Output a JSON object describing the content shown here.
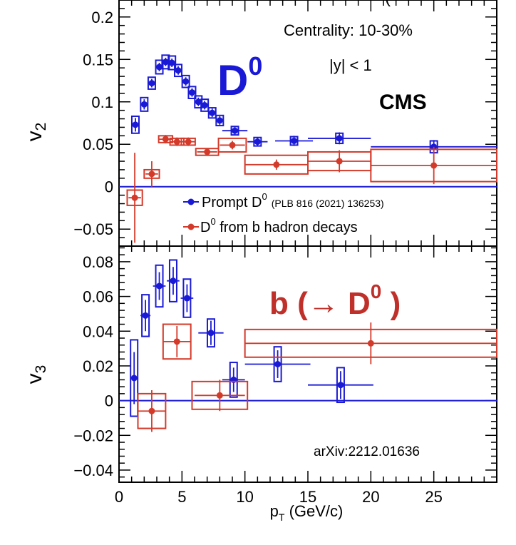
{
  "figure": {
    "header_fragment": "(",
    "xlabel_main": "p",
    "xlabel_sub": "T",
    "xlabel_unit": " (GeV/c)"
  },
  "chart_data": [
    {
      "type": "scatter",
      "panel": "top",
      "ylabel_main": "v",
      "ylabel_sub": "2",
      "xlim": [
        0,
        30
      ],
      "ylim": [
        -0.07,
        0.22
      ],
      "xticks": [
        "0",
        "5",
        "10",
        "15",
        "20",
        "25"
      ],
      "yticks": [
        {
          "value": 0.2,
          "label": "0.2"
        },
        {
          "value": 0.15,
          "label": "0.15"
        },
        {
          "value": 0.1,
          "label": "0.1"
        },
        {
          "value": 0.05,
          "label": "0.05"
        },
        {
          "value": 0,
          "label": "0"
        },
        {
          "value": -0.05,
          "label": "−0.05"
        }
      ],
      "annotations": {
        "centrality": "Centrality: 10-30%",
        "rapidity": "|y| < 1",
        "experiment": "CMS",
        "species": "D",
        "species_sup": "0"
      },
      "legend": {
        "prompt_text": "Prompt D",
        "prompt_sup": "0",
        "prompt_ref": "(PLB 816 (2021) 136253)",
        "b_text": "D",
        "b_sup": "0",
        "b_rest": " from b hadron decays"
      },
      "series": [
        {
          "name": "Prompt D0",
          "color": "#1a1ad6",
          "points": [
            {
              "x": 1.3,
              "y": 0.073,
              "xerr": 0.3,
              "stat": 0.008,
              "syst": 0.01
            },
            {
              "x": 2.0,
              "y": 0.097,
              "xerr": 0.25,
              "stat": 0.006,
              "syst": 0.008
            },
            {
              "x": 2.6,
              "y": 0.122,
              "xerr": 0.25,
              "stat": 0.005,
              "syst": 0.007
            },
            {
              "x": 3.2,
              "y": 0.141,
              "xerr": 0.25,
              "stat": 0.005,
              "syst": 0.008
            },
            {
              "x": 3.7,
              "y": 0.147,
              "xerr": 0.25,
              "stat": 0.005,
              "syst": 0.008
            },
            {
              "x": 4.2,
              "y": 0.146,
              "xerr": 0.25,
              "stat": 0.005,
              "syst": 0.008
            },
            {
              "x": 4.7,
              "y": 0.137,
              "xerr": 0.25,
              "stat": 0.005,
              "syst": 0.007
            },
            {
              "x": 5.3,
              "y": 0.124,
              "xerr": 0.25,
              "stat": 0.005,
              "syst": 0.007
            },
            {
              "x": 5.8,
              "y": 0.111,
              "xerr": 0.25,
              "stat": 0.005,
              "syst": 0.007
            },
            {
              "x": 6.3,
              "y": 0.1,
              "xerr": 0.25,
              "stat": 0.005,
              "syst": 0.007
            },
            {
              "x": 6.8,
              "y": 0.096,
              "xerr": 0.25,
              "stat": 0.005,
              "syst": 0.007
            },
            {
              "x": 7.4,
              "y": 0.087,
              "xerr": 0.3,
              "stat": 0.005,
              "syst": 0.006
            },
            {
              "x": 8.0,
              "y": 0.078,
              "xerr": 0.3,
              "stat": 0.005,
              "syst": 0.006
            },
            {
              "x": 9.2,
              "y": 0.066,
              "xerr": 1.0,
              "stat": 0.005,
              "syst": 0.005
            },
            {
              "x": 11.0,
              "y": 0.053,
              "xerr": 0.8,
              "stat": 0.005,
              "syst": 0.005
            },
            {
              "x": 13.9,
              "y": 0.054,
              "xerr": 1.5,
              "stat": 0.006,
              "syst": 0.005
            },
            {
              "x": 17.5,
              "y": 0.057,
              "xerr": 2.5,
              "stat": 0.007,
              "syst": 0.006
            },
            {
              "x": 25.0,
              "y": 0.047,
              "xerr": 5.0,
              "stat": 0.008,
              "syst": 0.007
            }
          ]
        },
        {
          "name": "D0 from b hadron decays",
          "color": "#d43a2a",
          "points": [
            {
              "x": 1.25,
              "y": -0.013,
              "xerr": 0.5,
              "xsyst": 0.6,
              "stat": 0.053,
              "syst": 0.009
            },
            {
              "x": 2.6,
              "y": 0.015,
              "xerr": 0.5,
              "xsyst": 0.6,
              "stat": 0.015,
              "syst": 0.005
            },
            {
              "x": 3.7,
              "y": 0.056,
              "xerr": 0.5,
              "xsyst": 0.55,
              "stat": 0.005,
              "syst": 0.004
            },
            {
              "x": 4.6,
              "y": 0.053,
              "xerr": 0.5,
              "xsyst": 0.55,
              "stat": 0.005,
              "syst": 0.004
            },
            {
              "x": 5.5,
              "y": 0.053,
              "xerr": 0.5,
              "xsyst": 0.55,
              "stat": 0.005,
              "syst": 0.004
            },
            {
              "x": 7.0,
              "y": 0.041,
              "xerr": 0.8,
              "xsyst": 0.9,
              "stat": 0.004,
              "syst": 0.004
            },
            {
              "x": 9.0,
              "y": 0.049,
              "xerr": 1.0,
              "xsyst": 1.1,
              "stat": 0.005,
              "syst": 0.008
            },
            {
              "x": 12.5,
              "y": 0.026,
              "xerr": 2.5,
              "xsyst": 2.5,
              "stat": 0.006,
              "syst": 0.011
            },
            {
              "x": 17.5,
              "y": 0.03,
              "xerr": 2.5,
              "xsyst": 2.5,
              "stat": 0.013,
              "syst": 0.011
            },
            {
              "x": 25.0,
              "y": 0.025,
              "xerr": 5.0,
              "xsyst": 5.0,
              "stat": 0.022,
              "syst": 0.019
            }
          ]
        }
      ]
    },
    {
      "type": "scatter",
      "panel": "bottom",
      "ylabel_main": "v",
      "ylabel_sub": "3",
      "xlim": [
        0,
        30
      ],
      "ylim": [
        -0.047,
        0.089
      ],
      "xticks": [
        "0",
        "5",
        "10",
        "15",
        "20",
        "25"
      ],
      "yticks": [
        {
          "value": 0.08,
          "label": "0.08"
        },
        {
          "value": 0.06,
          "label": "0.06"
        },
        {
          "value": 0.04,
          "label": "0.04"
        },
        {
          "value": 0.02,
          "label": "0.02"
        },
        {
          "value": 0,
          "label": "0"
        },
        {
          "value": -0.02,
          "label": "−0.02"
        },
        {
          "value": -0.04,
          "label": "−0.04"
        }
      ],
      "annotations": {
        "species_prefix": "b (→ D",
        "species_sup": "0",
        "species_suffix": " )",
        "reference": "arXiv:2212.01636"
      },
      "series": [
        {
          "name": "Prompt D0",
          "color": "#1a1ad6",
          "points": [
            {
              "x": 1.2,
              "y": 0.013,
              "xerr": 0.3,
              "stat": 0.015,
              "syst": 0.022
            },
            {
              "x": 2.1,
              "y": 0.049,
              "xerr": 0.4,
              "stat": 0.009,
              "syst": 0.012
            },
            {
              "x": 3.2,
              "y": 0.066,
              "xerr": 0.5,
              "stat": 0.008,
              "syst": 0.012
            },
            {
              "x": 4.3,
              "y": 0.069,
              "xerr": 0.5,
              "stat": 0.008,
              "syst": 0.012
            },
            {
              "x": 5.4,
              "y": 0.059,
              "xerr": 0.5,
              "stat": 0.008,
              "syst": 0.011
            },
            {
              "x": 7.3,
              "y": 0.039,
              "xerr": 1.0,
              "stat": 0.007,
              "syst": 0.008
            },
            {
              "x": 9.1,
              "y": 0.012,
              "xerr": 0.9,
              "stat": 0.007,
              "syst": 0.01
            },
            {
              "x": 12.6,
              "y": 0.021,
              "xerr": 2.6,
              "stat": 0.008,
              "syst": 0.01
            },
            {
              "x": 17.6,
              "y": 0.009,
              "xerr": 2.6,
              "stat": 0.008,
              "syst": 0.01
            }
          ]
        },
        {
          "name": "D0 from b hadron decays",
          "color": "#d43a2a",
          "points": [
            {
              "x": 2.6,
              "y": -0.006,
              "xerr": 1.1,
              "xsyst": 1.1,
              "stat": 0.012,
              "syst": 0.01
            },
            {
              "x": 4.6,
              "y": 0.034,
              "xerr": 1.1,
              "xsyst": 1.1,
              "stat": 0.009,
              "syst": 0.01
            },
            {
              "x": 8.0,
              "y": 0.003,
              "xerr": 2.0,
              "xsyst": 2.2,
              "stat": 0.009,
              "syst": 0.008
            },
            {
              "x": 20.0,
              "y": 0.033,
              "xerr": 10.0,
              "xsyst": 10.0,
              "stat": 0.012,
              "syst": 0.008
            }
          ]
        }
      ]
    }
  ]
}
